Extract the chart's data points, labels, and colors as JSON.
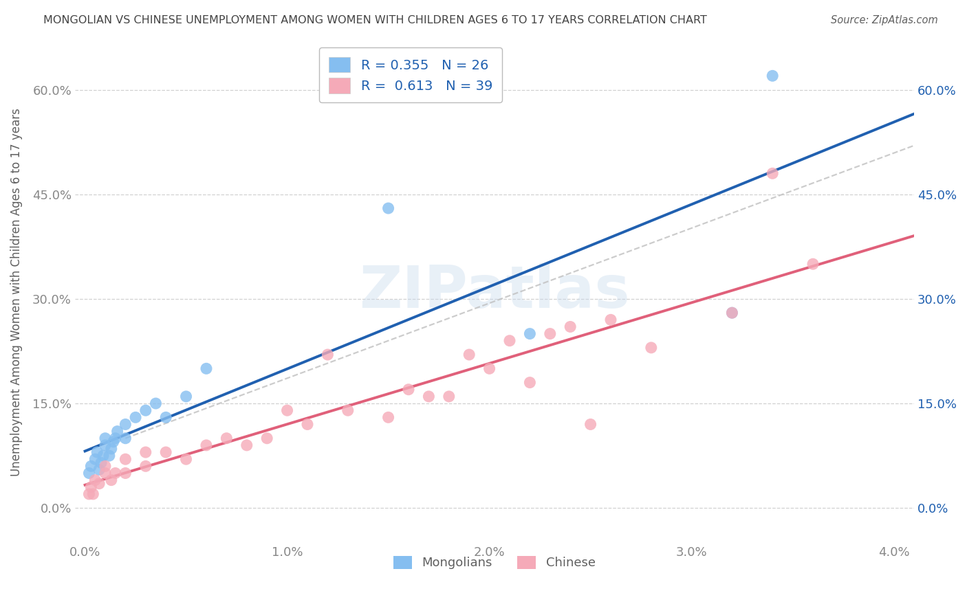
{
  "title": "MONGOLIAN VS CHINESE UNEMPLOYMENT AMONG WOMEN WITH CHILDREN AGES 6 TO 17 YEARS CORRELATION CHART",
  "source": "Source: ZipAtlas.com",
  "ylabel": "Unemployment Among Women with Children Ages 6 to 17 years",
  "xlim": [
    -0.0005,
    0.041
  ],
  "ylim": [
    -0.05,
    0.67
  ],
  "xticks": [
    0.0,
    0.01,
    0.02,
    0.03,
    0.04
  ],
  "yticks": [
    0.0,
    0.15,
    0.3,
    0.45,
    0.6
  ],
  "xtick_labels": [
    "0.0%",
    "1.0%",
    "2.0%",
    "3.0%",
    "4.0%"
  ],
  "ytick_labels": [
    "0.0%",
    "15.0%",
    "30.0%",
    "45.0%",
    "60.0%"
  ],
  "mongolian_color": "#85bef0",
  "chinese_color": "#f5aab8",
  "mongolian_line_color": "#2060b0",
  "chinese_line_color": "#e0607a",
  "ref_line_color": "#c0c0c0",
  "watermark_text": "ZIPatlas",
  "watermark_color": "#c5d8ec",
  "legend_R_mongolian": "0.355",
  "legend_N_mongolian": "26",
  "legend_R_chinese": "0.613",
  "legend_N_chinese": "39",
  "mongolian_x": [
    0.0002,
    0.0003,
    0.0005,
    0.0006,
    0.0007,
    0.0008,
    0.0009,
    0.001,
    0.001,
    0.0012,
    0.0013,
    0.0014,
    0.0015,
    0.0016,
    0.002,
    0.002,
    0.0025,
    0.003,
    0.0035,
    0.004,
    0.005,
    0.006,
    0.015,
    0.022,
    0.032,
    0.034
  ],
  "mongolian_y": [
    0.05,
    0.06,
    0.07,
    0.08,
    0.055,
    0.065,
    0.075,
    0.09,
    0.1,
    0.075,
    0.085,
    0.095,
    0.1,
    0.11,
    0.1,
    0.12,
    0.13,
    0.14,
    0.15,
    0.13,
    0.16,
    0.2,
    0.43,
    0.25,
    0.28,
    0.62
  ],
  "chinese_x": [
    0.0002,
    0.0003,
    0.0004,
    0.0005,
    0.0007,
    0.001,
    0.001,
    0.0013,
    0.0015,
    0.002,
    0.002,
    0.003,
    0.003,
    0.004,
    0.005,
    0.006,
    0.007,
    0.008,
    0.009,
    0.01,
    0.011,
    0.012,
    0.013,
    0.015,
    0.016,
    0.017,
    0.018,
    0.019,
    0.02,
    0.021,
    0.022,
    0.023,
    0.024,
    0.025,
    0.026,
    0.028,
    0.032,
    0.034,
    0.036
  ],
  "chinese_y": [
    0.02,
    0.03,
    0.02,
    0.04,
    0.035,
    0.05,
    0.06,
    0.04,
    0.05,
    0.05,
    0.07,
    0.06,
    0.08,
    0.08,
    0.07,
    0.09,
    0.1,
    0.09,
    0.1,
    0.14,
    0.12,
    0.22,
    0.14,
    0.13,
    0.17,
    0.16,
    0.16,
    0.22,
    0.2,
    0.24,
    0.18,
    0.25,
    0.26,
    0.12,
    0.27,
    0.23,
    0.28,
    0.48,
    0.35
  ],
  "background_color": "#ffffff",
  "grid_color": "#cccccc",
  "title_color": "#444444",
  "axis_label_color": "#606060",
  "left_tick_color": "#888888",
  "right_tick_color": "#2060b0"
}
